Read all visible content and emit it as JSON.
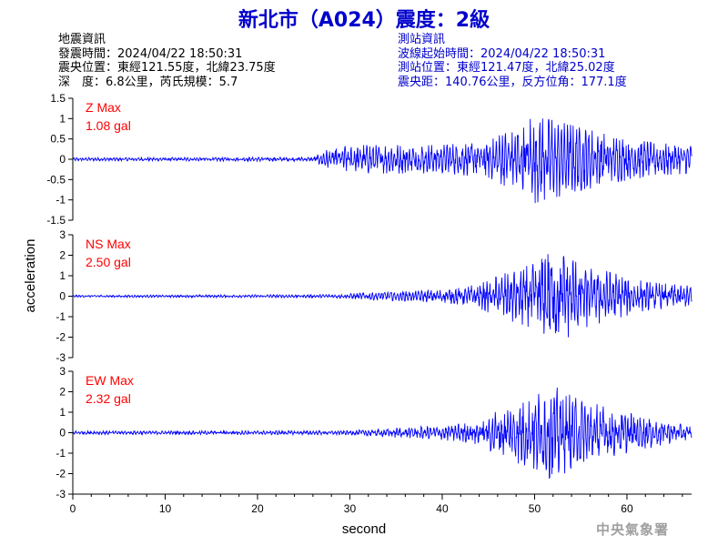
{
  "title": "新北市（A024）震度：2級",
  "quake_info": {
    "heading": "地震資訊",
    "time": "發震時間：2024/04/22 18:50:31",
    "location": "震央位置：東經121.55度，北緯23.75度",
    "depth": "深　度：6.8公里，芮氏規模：5.7"
  },
  "station_info": {
    "heading": "測站資訊",
    "start_time": "波線起始時間：2024/04/22 18:50:31",
    "location": "測站位置：東經121.47度，北緯25.02度",
    "distance": "震央距：140.76公里，反方位角：177.1度"
  },
  "agency": "中央氣象署",
  "colors": {
    "title": "#0000cc",
    "trace": "#0000ff",
    "max_label": "#ff0000",
    "axis": "#000000",
    "watermark": "#a0a0a0"
  },
  "chart_data": {
    "type": "line",
    "xlabel": "second",
    "ylabel": "acceleration",
    "xlim": [
      0,
      67
    ],
    "x_ticks": [
      0,
      10,
      20,
      30,
      40,
      50,
      60
    ],
    "panels": [
      {
        "name": "Z",
        "max_label": "Z Max",
        "max_value": "1.08 gal",
        "ylim": [
          -1.5,
          1.5
        ],
        "y_ticks": [
          1.5,
          1,
          0.5,
          0,
          -0.5,
          -1,
          -1.5
        ],
        "y_tick_labels": [
          "1.5",
          "1",
          "0.5",
          "0",
          "-0.5",
          "-1",
          "-1.5"
        ],
        "envelope": [
          [
            0,
            0.04
          ],
          [
            26,
            0.05
          ],
          [
            27,
            0.2
          ],
          [
            30,
            0.35
          ],
          [
            40,
            0.35
          ],
          [
            45,
            0.45
          ],
          [
            48,
            0.8
          ],
          [
            50,
            1.08
          ],
          [
            53,
            0.9
          ],
          [
            58,
            0.6
          ],
          [
            63,
            0.4
          ],
          [
            67,
            0.35
          ]
        ]
      },
      {
        "name": "NS",
        "max_label": "NS Max",
        "max_value": "2.50 gal",
        "ylim": [
          -3,
          3
        ],
        "y_ticks": [
          3,
          2,
          1,
          0,
          -1,
          -2,
          -3
        ],
        "y_tick_labels": [
          "3",
          "2",
          "1",
          "0",
          "-1",
          "-2",
          "-3"
        ],
        "envelope": [
          [
            0,
            0.05
          ],
          [
            28,
            0.08
          ],
          [
            33,
            0.2
          ],
          [
            40,
            0.3
          ],
          [
            44,
            0.6
          ],
          [
            46,
            1.0
          ],
          [
            50,
            1.6
          ],
          [
            52,
            2.5
          ],
          [
            55,
            1.6
          ],
          [
            58,
            1.2
          ],
          [
            62,
            0.7
          ],
          [
            67,
            0.5
          ]
        ]
      },
      {
        "name": "EW",
        "max_label": "EW Max",
        "max_value": "2.32 gal",
        "ylim": [
          -3,
          3
        ],
        "y_ticks": [
          3,
          2,
          1,
          0,
          -1,
          -2,
          -3
        ],
        "y_tick_labels": [
          "3",
          "2",
          "1",
          "0",
          "-1",
          "-2",
          "-3"
        ],
        "envelope": [
          [
            0,
            0.08
          ],
          [
            30,
            0.1
          ],
          [
            35,
            0.25
          ],
          [
            40,
            0.35
          ],
          [
            44,
            0.6
          ],
          [
            47,
            1.3
          ],
          [
            50,
            1.8
          ],
          [
            52,
            2.32
          ],
          [
            54,
            1.8
          ],
          [
            58,
            1.2
          ],
          [
            62,
            0.8
          ],
          [
            67,
            0.3
          ]
        ]
      }
    ]
  }
}
